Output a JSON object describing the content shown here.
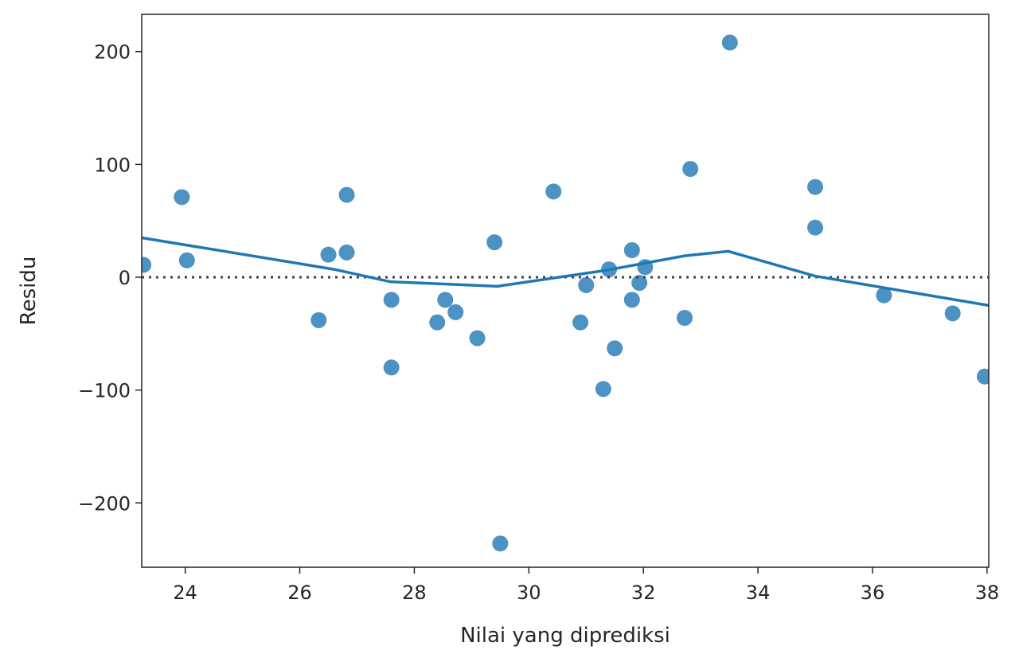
{
  "chart_data": {
    "type": "scatter",
    "title": "",
    "xlabel": "Nilai yang diprediksi",
    "ylabel": "Residu",
    "xlim": [
      23.24,
      38.03
    ],
    "ylim": [
      -257,
      233
    ],
    "xticks": [
      24,
      26,
      28,
      30,
      32,
      34,
      36,
      38
    ],
    "yticks": [
      200,
      100,
      0,
      -100,
      -200
    ],
    "ytick_labels": [
      "200",
      "100",
      "0",
      "−100",
      "−200"
    ],
    "grid": false,
    "point_color": "#1f77b4",
    "line_color": "#1f77b4",
    "reference_line": {
      "y": 0,
      "style": "dotted",
      "color": "#404040"
    },
    "points": [
      {
        "x": 23.27,
        "y": 11
      },
      {
        "x": 23.94,
        "y": 71
      },
      {
        "x": 24.03,
        "y": 15
      },
      {
        "x": 26.33,
        "y": -38
      },
      {
        "x": 26.5,
        "y": 20
      },
      {
        "x": 26.82,
        "y": 73
      },
      {
        "x": 26.82,
        "y": 22
      },
      {
        "x": 27.6,
        "y": -20
      },
      {
        "x": 27.6,
        "y": -80
      },
      {
        "x": 28.4,
        "y": -40
      },
      {
        "x": 28.54,
        "y": -20
      },
      {
        "x": 28.72,
        "y": -31
      },
      {
        "x": 29.1,
        "y": -54
      },
      {
        "x": 29.4,
        "y": 31
      },
      {
        "x": 29.5,
        "y": -236
      },
      {
        "x": 30.43,
        "y": 76
      },
      {
        "x": 30.9,
        "y": -40
      },
      {
        "x": 31.0,
        "y": -7
      },
      {
        "x": 31.3,
        "y": -99
      },
      {
        "x": 31.4,
        "y": 7
      },
      {
        "x": 31.5,
        "y": -63
      },
      {
        "x": 31.8,
        "y": 24
      },
      {
        "x": 31.8,
        "y": -20
      },
      {
        "x": 31.93,
        "y": -5
      },
      {
        "x": 32.03,
        "y": 9
      },
      {
        "x": 32.72,
        "y": -36
      },
      {
        "x": 32.82,
        "y": 96
      },
      {
        "x": 33.51,
        "y": 208
      },
      {
        "x": 35.0,
        "y": 80
      },
      {
        "x": 35.0,
        "y": 44
      },
      {
        "x": 36.2,
        "y": -16
      },
      {
        "x": 37.4,
        "y": -32
      },
      {
        "x": 37.96,
        "y": -88
      }
    ],
    "lowess": [
      {
        "x": 23.24,
        "y": 35
      },
      {
        "x": 26.6,
        "y": 7
      },
      {
        "x": 27.58,
        "y": -4
      },
      {
        "x": 29.45,
        "y": -8
      },
      {
        "x": 31.33,
        "y": 6
      },
      {
        "x": 32.72,
        "y": 19
      },
      {
        "x": 33.48,
        "y": 23
      },
      {
        "x": 35.0,
        "y": 1
      },
      {
        "x": 38.03,
        "y": -25
      }
    ]
  }
}
